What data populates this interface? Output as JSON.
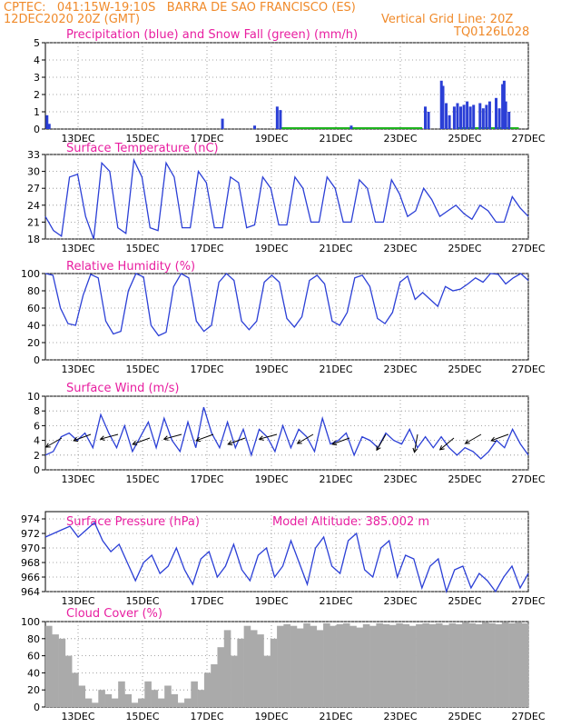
{
  "header": {
    "line1": "CPTEC:   041:15W-19:10S   BARRA DE SAO FRANCISCO (ES)",
    "line2": "12DEC2020 20Z (GMT)",
    "grid_note": "Vertical Grid Line: 20Z",
    "code": "TQ0126L028"
  },
  "colors": {
    "header": "#f08a2a",
    "title": "#e81ea0",
    "line": "#2b3fd6",
    "snow": "#1db41d",
    "cloud": "#aaaaaa",
    "arrow": "#000000"
  },
  "x_ticks": [
    "13DEC",
    "15DEC",
    "17DEC",
    "19DEC",
    "21DEC",
    "23DEC",
    "25DEC",
    "27DEC"
  ],
  "altitude_label": "Model Altitude: 385.002 m",
  "chart_data": [
    {
      "type": "bar",
      "title": "Precipitation (blue) and Snow Fall (green) (mm/h)",
      "ylim": [
        0,
        5
      ],
      "yticks": [
        "0",
        "1",
        "2",
        "3",
        "4",
        "5"
      ],
      "x": [
        0,
        2.5,
        4.5,
        5.5,
        6,
        6.5,
        7.2,
        8.5,
        9.5,
        10,
        10.5,
        11,
        11.5,
        12,
        12.5,
        13,
        13.5,
        14,
        14.5
      ],
      "series": [
        {
          "name": "Precipitation",
          "points": [
            [
              0.05,
              0.8
            ],
            [
              0.12,
              0.3
            ],
            [
              5.5,
              0.6
            ],
            [
              6.5,
              0.2
            ],
            [
              7.2,
              1.3
            ],
            [
              7.3,
              1.1
            ],
            [
              9.5,
              0.2
            ],
            [
              11.8,
              1.3
            ],
            [
              11.9,
              1.0
            ],
            [
              12.3,
              2.8
            ],
            [
              12.35,
              2.5
            ],
            [
              12.45,
              1.5
            ],
            [
              12.55,
              0.8
            ],
            [
              12.7,
              1.3
            ],
            [
              12.8,
              1.5
            ],
            [
              12.9,
              1.3
            ],
            [
              13.0,
              1.4
            ],
            [
              13.1,
              1.6
            ],
            [
              13.2,
              1.3
            ],
            [
              13.3,
              1.4
            ],
            [
              13.5,
              1.5
            ],
            [
              13.6,
              1.2
            ],
            [
              13.7,
              1.4
            ],
            [
              13.8,
              1.6
            ],
            [
              14.0,
              1.8
            ],
            [
              14.1,
              1.2
            ],
            [
              14.2,
              2.6
            ],
            [
              14.25,
              2.8
            ],
            [
              14.3,
              1.6
            ],
            [
              14.4,
              1.0
            ]
          ]
        },
        {
          "name": "Snow Fall",
          "points": [
            [
              8.0,
              0.05
            ],
            [
              9.0,
              0.05
            ],
            [
              10.0,
              0.05
            ],
            [
              11.0,
              0.05
            ],
            [
              13.5,
              0.05
            ],
            [
              14.0,
              0.05
            ]
          ]
        }
      ]
    },
    {
      "type": "line",
      "title": "Surface Temperature (nC)",
      "ylim": [
        18,
        33
      ],
      "yticks": [
        "18",
        "21",
        "24",
        "27",
        "30",
        "33"
      ],
      "values": [
        22,
        19.5,
        18.5,
        29,
        29.5,
        22,
        18,
        31.5,
        30,
        20,
        19,
        32,
        29,
        20,
        19.5,
        31.5,
        29,
        20,
        20,
        30,
        28,
        20,
        20,
        29,
        28,
        20,
        20.5,
        29,
        27,
        20.5,
        20.5,
        29,
        27,
        21,
        21,
        29,
        27,
        21,
        21,
        28.5,
        27,
        21,
        21,
        28.5,
        26,
        22,
        23,
        27,
        25,
        22,
        23,
        24,
        22.5,
        21.5,
        24,
        23,
        21,
        21,
        25.5,
        23.5,
        22
      ]
    },
    {
      "type": "line",
      "title": "Relative Humidity (%)",
      "ylim": [
        0,
        100
      ],
      "yticks": [
        "0",
        "20",
        "40",
        "60",
        "80",
        "100"
      ],
      "values": [
        100,
        98,
        60,
        42,
        40,
        75,
        99,
        95,
        45,
        30,
        33,
        80,
        100,
        96,
        40,
        28,
        32,
        85,
        100,
        95,
        45,
        33,
        40,
        90,
        100,
        92,
        45,
        35,
        45,
        90,
        98,
        90,
        48,
        38,
        50,
        92,
        98,
        88,
        45,
        40,
        55,
        95,
        98,
        85,
        48,
        42,
        55,
        90,
        97,
        70,
        78,
        70,
        62,
        85,
        80,
        82,
        88,
        95,
        90,
        100,
        99,
        88,
        95,
        100,
        92
      ]
    },
    {
      "type": "line",
      "title": "Surface Wind (m/s)",
      "ylim": [
        0,
        10
      ],
      "yticks": [
        "0",
        "2",
        "4",
        "6",
        "8",
        "10"
      ],
      "values": [
        2,
        2.5,
        4.5,
        5,
        4,
        5,
        3,
        7.5,
        5,
        3,
        6,
        2.5,
        4.5,
        6.5,
        3,
        7,
        4,
        2.5,
        6.5,
        3,
        8.5,
        5,
        3,
        6.5,
        3,
        5.5,
        2,
        5.5,
        4.5,
        2.5,
        6,
        3,
        5.5,
        4.5,
        2.5,
        7,
        3.5,
        4,
        5,
        2,
        4.5,
        4,
        3,
        5,
        4,
        3.5,
        5.5,
        3,
        4.5,
        3,
        4.5,
        3,
        2,
        3,
        2.5,
        1.5,
        2.5,
        4,
        3,
        5.5,
        3.5,
        2
      ]
    },
    {
      "type": "line",
      "title": "Surface Pressure (hPa)",
      "ylim": [
        964,
        975
      ],
      "yticks": [
        "964",
        "966",
        "968",
        "970",
        "972",
        "974"
      ],
      "values": [
        971.5,
        972,
        972.5,
        973,
        971.5,
        972.5,
        973.5,
        971,
        969.5,
        970.5,
        968,
        965.5,
        968,
        969,
        966.5,
        967.5,
        970,
        967,
        965,
        968.5,
        969.5,
        966,
        967.5,
        970.5,
        967,
        965.5,
        969,
        970,
        966,
        967.5,
        971,
        968,
        965,
        970,
        971.5,
        967.5,
        966.5,
        971,
        972,
        967,
        966,
        970,
        971,
        966,
        969,
        968.5,
        964.5,
        967.5,
        968.5,
        964,
        967,
        967.5,
        964.5,
        966.5,
        965.5,
        964,
        966,
        967.5,
        964.5,
        966.5
      ]
    },
    {
      "type": "bar",
      "title": "Cloud Cover (%)",
      "ylim": [
        0,
        100
      ],
      "yticks": [
        "0",
        "20",
        "40",
        "60",
        "80",
        "100"
      ],
      "values": [
        95,
        85,
        80,
        60,
        40,
        25,
        10,
        5,
        20,
        15,
        10,
        30,
        15,
        5,
        10,
        30,
        20,
        10,
        25,
        15,
        5,
        10,
        30,
        20,
        40,
        50,
        70,
        90,
        60,
        80,
        95,
        90,
        85,
        60,
        80,
        95,
        97,
        95,
        92,
        98,
        95,
        90,
        98,
        95,
        97,
        98,
        95,
        93,
        97,
        95,
        98,
        97,
        96,
        98,
        97,
        95,
        97,
        98,
        97,
        98,
        96,
        98,
        97,
        99,
        98,
        97,
        99,
        98,
        97,
        99,
        98,
        99,
        98
      ]
    }
  ]
}
